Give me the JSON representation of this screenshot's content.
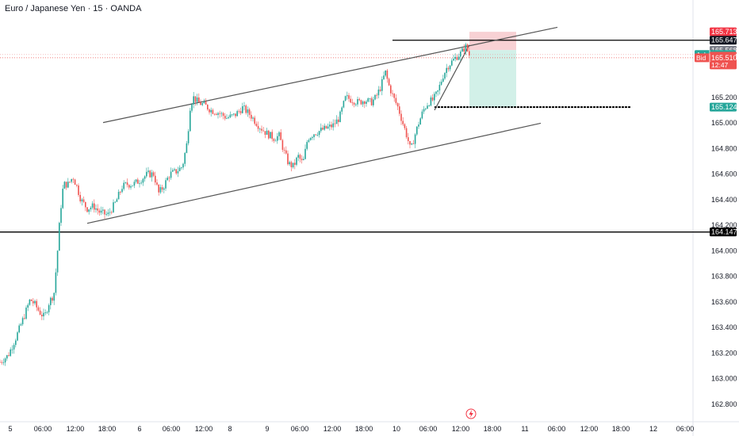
{
  "chart_title": "Euro / Japanese Yen · 15 · OANDA",
  "colors": {
    "up": "#26a69a",
    "down": "#ef5350",
    "background": "#ffffff",
    "axis_text": "#131722",
    "channel_line": "#555555",
    "level_line": "#000000",
    "stop_zone": "#f7c9cd",
    "target_zone": "#cdeee6",
    "ask": "#26a69a",
    "bid": "#ef5350",
    "price_tag": "#f23645"
  },
  "chart_data": {
    "type": "candlestick",
    "title": "Euro / Japanese Yen · 15 · OANDA",
    "ylim": [
      162.75,
      165.85
    ],
    "xlim": [
      0,
      910
    ],
    "x_ticks": [
      {
        "label": "5",
        "x": 13
      },
      {
        "label": "06:00",
        "x": 54
      },
      {
        "label": "12:00",
        "x": 95
      },
      {
        "label": "18:00",
        "x": 135
      },
      {
        "label": "6",
        "x": 176
      },
      {
        "label": "06:00",
        "x": 216
      },
      {
        "label": "12:00",
        "x": 257
      },
      {
        "label": "8",
        "x": 290
      },
      {
        "label": "9",
        "x": 337
      },
      {
        "label": "06:00",
        "x": 378
      },
      {
        "label": "12:00",
        "x": 419
      },
      {
        "label": "18:00",
        "x": 459
      },
      {
        "label": "10",
        "x": 500
      },
      {
        "label": "06:00",
        "x": 540
      },
      {
        "label": "12:00",
        "x": 581
      },
      {
        "label": "18:00",
        "x": 621
      },
      {
        "label": "11",
        "x": 662
      },
      {
        "label": "06:00",
        "x": 702
      },
      {
        "label": "12:00",
        "x": 743
      },
      {
        "label": "18:00",
        "x": 783
      },
      {
        "label": "12",
        "x": 824
      },
      {
        "label": "06:00",
        "x": 864
      }
    ],
    "y_ticks": [
      {
        "label": "162.800",
        "value": 162.8
      },
      {
        "label": "163.000",
        "value": 163.0
      },
      {
        "label": "163.200",
        "value": 163.2
      },
      {
        "label": "163.400",
        "value": 163.4
      },
      {
        "label": "163.600",
        "value": 163.6
      },
      {
        "label": "163.800",
        "value": 163.8
      },
      {
        "label": "164.000",
        "value": 164.0
      },
      {
        "label": "164.200",
        "value": 164.2
      },
      {
        "label": "164.400",
        "value": 164.4
      },
      {
        "label": "164.600",
        "value": 164.6
      },
      {
        "label": "164.800",
        "value": 164.8
      },
      {
        "label": "165.000",
        "value": 165.0
      },
      {
        "label": "165.200",
        "value": 165.2
      }
    ],
    "price_tags": [
      {
        "label": "165.713",
        "value": 165.713,
        "color": "#f23645",
        "text_color": "#ffffff"
      },
      {
        "label": "165.647",
        "value": 165.647,
        "color": "#131722",
        "text_color": "#ffffff"
      },
      {
        "label": "165.568",
        "value": 165.568,
        "color": "#787b86",
        "text_color": "#ffffff"
      },
      {
        "label": "165.535",
        "value": 165.535,
        "color": "#26a69a",
        "text_color": "#ffffff",
        "prefix": "Ask"
      },
      {
        "label": "165.522",
        "value": 165.522,
        "color": "#ef5350",
        "text_color": "#ffffff",
        "sub": "12:47"
      },
      {
        "label": "165.510",
        "value": 165.51,
        "color": "#ef5350",
        "text_color": "#ffffff",
        "prefix": "Bid"
      },
      {
        "label": "165.124",
        "value": 165.124,
        "color": "#26a69a",
        "text_color": "#ffffff"
      },
      {
        "label": "164.147",
        "value": 164.147,
        "color": "#000000",
        "text_color": "#ffffff"
      }
    ],
    "horizontal_levels": [
      {
        "value": 165.647,
        "x_start": 495,
        "x_end": 910,
        "color": "#000000",
        "style": "solid"
      },
      {
        "value": 165.124,
        "x_start": 548,
        "x_end": 795,
        "color": "#000000",
        "style": "dashed"
      },
      {
        "value": 164.147,
        "x_start": 0,
        "x_end": 910,
        "color": "#000000",
        "style": "solid"
      }
    ],
    "trend_lines": [
      {
        "x1": 130,
        "y1": 165.003,
        "x2": 703,
        "y2": 165.748
      },
      {
        "x1": 110,
        "y1": 164.215,
        "x2": 682,
        "y2": 164.998
      },
      {
        "x1": 548,
        "y1": 165.1,
        "x2": 592,
        "y2": 165.61
      }
    ],
    "position": {
      "x_start": 592,
      "x_end": 651,
      "entry": 165.57,
      "stop": 165.713,
      "target": 165.124
    },
    "candles_path": [
      [
        0,
        163.13
      ],
      [
        10,
        163.18
      ],
      [
        20,
        163.32
      ],
      [
        30,
        163.48
      ],
      [
        38,
        163.62
      ],
      [
        44,
        163.58
      ],
      [
        50,
        163.52
      ],
      [
        56,
        163.48
      ],
      [
        62,
        163.6
      ],
      [
        68,
        163.66
      ],
      [
        72,
        163.95
      ],
      [
        76,
        164.3
      ],
      [
        80,
        164.52
      ],
      [
        86,
        164.52
      ],
      [
        92,
        164.58
      ],
      [
        97,
        164.5
      ],
      [
        102,
        164.4
      ],
      [
        110,
        164.33
      ],
      [
        118,
        164.35
      ],
      [
        126,
        164.3
      ],
      [
        136,
        164.28
      ],
      [
        146,
        164.38
      ],
      [
        154,
        164.5
      ],
      [
        160,
        164.52
      ],
      [
        168,
        164.52
      ],
      [
        176,
        164.55
      ],
      [
        186,
        164.6
      ],
      [
        194,
        164.6
      ],
      [
        200,
        164.45
      ],
      [
        206,
        164.5
      ],
      [
        214,
        164.6
      ],
      [
        222,
        164.62
      ],
      [
        230,
        164.66
      ],
      [
        236,
        164.85
      ],
      [
        240,
        165.14
      ],
      [
        244,
        165.2
      ],
      [
        250,
        165.16
      ],
      [
        258,
        165.14
      ],
      [
        266,
        165.1
      ],
      [
        276,
        165.08
      ],
      [
        286,
        165.04
      ],
      [
        296,
        165.06
      ],
      [
        306,
        165.12
      ],
      [
        316,
        165.06
      ],
      [
        326,
        164.98
      ],
      [
        336,
        164.92
      ],
      [
        346,
        164.88
      ],
      [
        352,
        164.9
      ],
      [
        358,
        164.78
      ],
      [
        364,
        164.68
      ],
      [
        370,
        164.66
      ],
      [
        376,
        164.74
      ],
      [
        382,
        164.68
      ],
      [
        388,
        164.88
      ],
      [
        396,
        164.92
      ],
      [
        404,
        164.94
      ],
      [
        412,
        164.96
      ],
      [
        420,
        164.98
      ],
      [
        428,
        165.04
      ],
      [
        436,
        165.2
      ],
      [
        444,
        165.18
      ],
      [
        452,
        165.16
      ],
      [
        460,
        165.18
      ],
      [
        468,
        165.16
      ],
      [
        474,
        165.2
      ],
      [
        480,
        165.28
      ],
      [
        486,
        165.4
      ],
      [
        490,
        165.3
      ],
      [
        496,
        165.2
      ],
      [
        502,
        165.12
      ],
      [
        508,
        165.0
      ],
      [
        514,
        164.88
      ],
      [
        518,
        164.78
      ],
      [
        522,
        164.88
      ],
      [
        528,
        165.0
      ],
      [
        534,
        165.1
      ],
      [
        540,
        165.16
      ],
      [
        546,
        165.18
      ],
      [
        552,
        165.24
      ],
      [
        558,
        165.36
      ],
      [
        564,
        165.44
      ],
      [
        570,
        165.48
      ],
      [
        576,
        165.52
      ],
      [
        582,
        165.55
      ],
      [
        587,
        165.6
      ],
      [
        592,
        165.53
      ]
    ]
  }
}
